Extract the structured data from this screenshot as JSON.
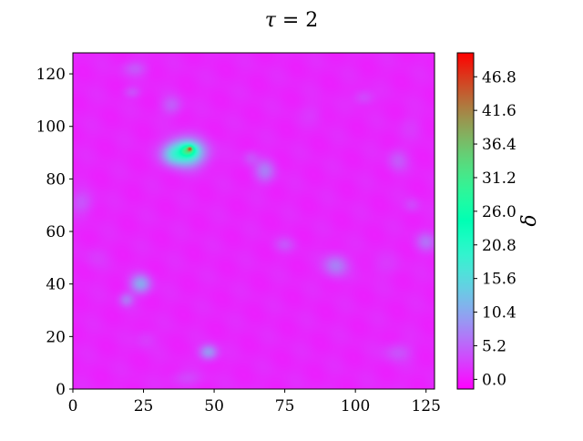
{
  "chart_data": {
    "type": "heatmap",
    "title": "τ = 2",
    "title_var": "τ",
    "title_rest": " = 2",
    "x_ticks": [
      "0",
      "25",
      "50",
      "75",
      "100",
      "125"
    ],
    "x_tick_values": [
      0,
      25,
      50,
      75,
      100,
      125
    ],
    "y_ticks": [
      "0",
      "20",
      "40",
      "60",
      "80",
      "100",
      "120"
    ],
    "y_tick_values": [
      0,
      20,
      40,
      60,
      80,
      100,
      120
    ],
    "xlim": [
      0,
      128
    ],
    "ylim": [
      0,
      128
    ],
    "colorbar": {
      "label": "δ",
      "ticks": [
        "0.0",
        "5.2",
        "10.4",
        "15.6",
        "20.8",
        "26.0",
        "31.2",
        "36.4",
        "41.6",
        "46.8"
      ],
      "tick_values": [
        0.0,
        5.2,
        10.4,
        15.6,
        20.8,
        26.0,
        31.2,
        36.4,
        41.6,
        46.8
      ],
      "range": [
        -1.5,
        50.5
      ],
      "colormap": "rainbow"
    },
    "background_value": 1.0,
    "features": [
      {
        "x": 40,
        "y": 90,
        "sx": 4.5,
        "sy": 3.5,
        "value": 20.0
      },
      {
        "x": 41,
        "y": 91,
        "sx": 1.8,
        "sy": 1.5,
        "value": 14.0
      },
      {
        "x": 41.5,
        "y": 91.5,
        "sx": 0.6,
        "sy": 0.6,
        "value": 15.0
      },
      {
        "x": 35,
        "y": 89,
        "sx": 2.5,
        "sy": 2.5,
        "value": 5.0
      },
      {
        "x": 24,
        "y": 40,
        "sx": 2.5,
        "sy": 2.5,
        "value": 9.0
      },
      {
        "x": 19,
        "y": 34,
        "sx": 1.8,
        "sy": 1.8,
        "value": 5.0
      },
      {
        "x": 48,
        "y": 14,
        "sx": 2.2,
        "sy": 2.0,
        "value": 8.0
      },
      {
        "x": 93,
        "y": 47,
        "sx": 3.0,
        "sy": 3.0,
        "value": 6.0
      },
      {
        "x": 68,
        "y": 83,
        "sx": 2.5,
        "sy": 3.0,
        "value": 5.5
      },
      {
        "x": 125,
        "y": 56,
        "sx": 2.5,
        "sy": 2.5,
        "value": 4.5
      },
      {
        "x": 35,
        "y": 108,
        "sx": 2.5,
        "sy": 2.5,
        "value": 3.5
      },
      {
        "x": 22,
        "y": 122,
        "sx": 3.0,
        "sy": 2.0,
        "value": 3.0
      },
      {
        "x": 21,
        "y": 113,
        "sx": 2.0,
        "sy": 1.5,
        "value": 2.5
      },
      {
        "x": 103,
        "y": 111,
        "sx": 2.5,
        "sy": 2.0,
        "value": 2.5
      },
      {
        "x": 115,
        "y": 87,
        "sx": 2.5,
        "sy": 3.0,
        "value": 3.0
      },
      {
        "x": 120,
        "y": 70,
        "sx": 2.0,
        "sy": 2.0,
        "value": 2.0
      },
      {
        "x": 3,
        "y": 71,
        "sx": 3.0,
        "sy": 3.0,
        "value": 3.0
      },
      {
        "x": 115,
        "y": 14,
        "sx": 3.5,
        "sy": 2.5,
        "value": 2.8
      },
      {
        "x": 40,
        "y": 4,
        "sx": 4.0,
        "sy": 2.0,
        "value": 2.0
      },
      {
        "x": 75,
        "y": 55,
        "sx": 2.5,
        "sy": 2.0,
        "value": 2.5
      },
      {
        "x": 63,
        "y": 88,
        "sx": 2.0,
        "sy": 2.0,
        "value": 2.5
      },
      {
        "x": 26,
        "y": 19,
        "sx": 2.5,
        "sy": 2.5,
        "value": 1.5
      },
      {
        "x": 110,
        "y": 47,
        "sx": 4.0,
        "sy": 3.0,
        "value": 1.0
      },
      {
        "x": 85,
        "y": 105,
        "sx": 3.0,
        "sy": 3.0,
        "value": 1.0
      },
      {
        "x": 8,
        "y": 50,
        "sx": 3.0,
        "sy": 3.0,
        "value": 1.0
      },
      {
        "x": 120,
        "y": 100,
        "sx": 3.0,
        "sy": 3.0,
        "value": 1.0
      }
    ]
  }
}
